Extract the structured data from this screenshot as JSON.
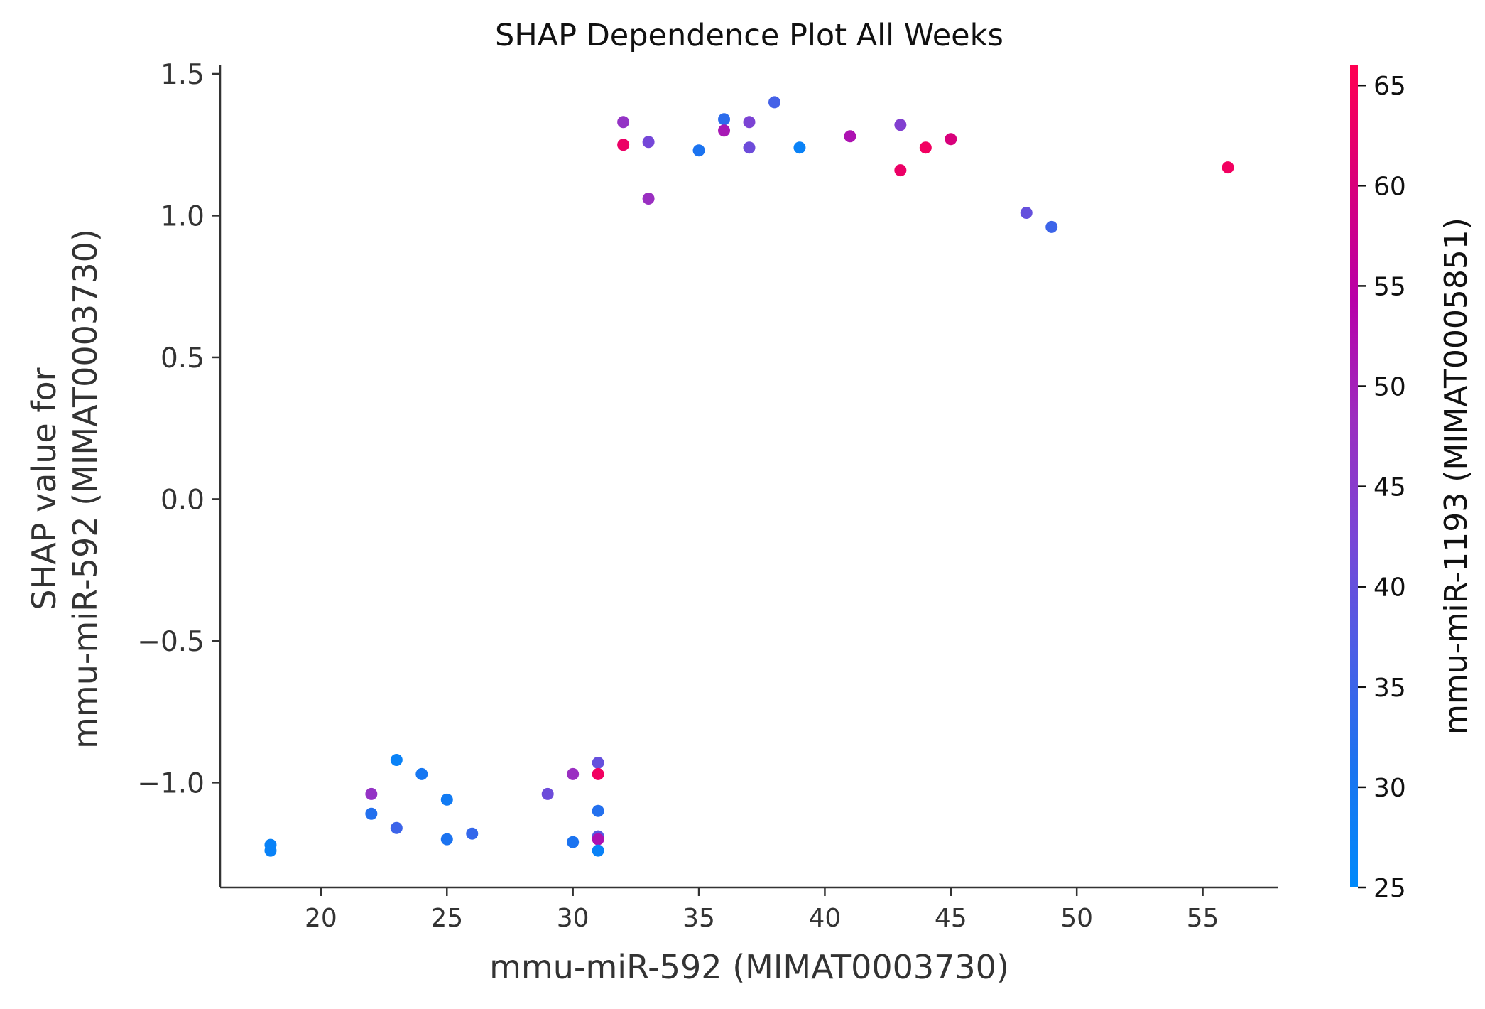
{
  "chart_data": {
    "type": "scatter",
    "title": "SHAP Dependence Plot All Weeks",
    "xlabel": "mmu-miR-592 (MIMAT0003730)",
    "ylabel_lines": [
      "SHAP value for",
      "mmu-miR-592 (MIMAT0003730)"
    ],
    "colorbar_label": "mmu-miR-1193 (MIMAT0005851)",
    "xlim": [
      16,
      58
    ],
    "ylim": [
      -1.37,
      1.53
    ],
    "xticks": [
      20,
      25,
      30,
      35,
      40,
      45,
      50,
      55
    ],
    "xtick_labels": [
      "20",
      "25",
      "30",
      "35",
      "40",
      "45",
      "50",
      "55"
    ],
    "yticks": [
      1.5,
      1.0,
      0.5,
      0.0,
      -0.5,
      -1.0
    ],
    "ytick_labels": [
      "1.5",
      "1.0",
      "0.5",
      "0.0",
      "−0.5",
      "−1.0"
    ],
    "color_range": [
      25,
      66
    ],
    "color_ticks": [
      25,
      30,
      35,
      40,
      45,
      50,
      55,
      60,
      65
    ],
    "color_tick_labels": [
      "25",
      "30",
      "35",
      "40",
      "45",
      "50",
      "55",
      "60",
      "65"
    ],
    "colormap": [
      "#008afb",
      "#1a74f0",
      "#4a5ee6",
      "#7a45d6",
      "#9c2dbf",
      "#b800a8",
      "#d9007a",
      "#ff0052"
    ],
    "grid": false,
    "points": [
      {
        "x": 18,
        "y": -1.22,
        "c": 27
      },
      {
        "x": 18,
        "y": -1.24,
        "c": 27
      },
      {
        "x": 22,
        "y": -1.04,
        "c": 47
      },
      {
        "x": 22,
        "y": -1.11,
        "c": 32
      },
      {
        "x": 23,
        "y": -0.92,
        "c": 27
      },
      {
        "x": 23,
        "y": -1.16,
        "c": 35
      },
      {
        "x": 24,
        "y": -0.97,
        "c": 30
      },
      {
        "x": 25,
        "y": -1.06,
        "c": 29
      },
      {
        "x": 25,
        "y": -1.2,
        "c": 31
      },
      {
        "x": 26,
        "y": -1.18,
        "c": 34
      },
      {
        "x": 29,
        "y": -1.04,
        "c": 41
      },
      {
        "x": 30,
        "y": -0.97,
        "c": 48
      },
      {
        "x": 30,
        "y": -1.21,
        "c": 31
      },
      {
        "x": 31,
        "y": -0.93,
        "c": 40
      },
      {
        "x": 31,
        "y": -0.97,
        "c": 64
      },
      {
        "x": 31,
        "y": -1.1,
        "c": 32
      },
      {
        "x": 31,
        "y": -1.19,
        "c": 38
      },
      {
        "x": 31,
        "y": -1.2,
        "c": 52
      },
      {
        "x": 31,
        "y": -1.24,
        "c": 27
      },
      {
        "x": 32,
        "y": 1.33,
        "c": 47
      },
      {
        "x": 32,
        "y": 1.25,
        "c": 63
      },
      {
        "x": 33,
        "y": 1.26,
        "c": 42
      },
      {
        "x": 33,
        "y": 1.06,
        "c": 48
      },
      {
        "x": 35,
        "y": 1.23,
        "c": 31
      },
      {
        "x": 36,
        "y": 1.34,
        "c": 33
      },
      {
        "x": 36,
        "y": 1.3,
        "c": 51
      },
      {
        "x": 37,
        "y": 1.33,
        "c": 43
      },
      {
        "x": 37,
        "y": 1.24,
        "c": 41
      },
      {
        "x": 38,
        "y": 1.4,
        "c": 36
      },
      {
        "x": 39,
        "y": 1.24,
        "c": 27
      },
      {
        "x": 41,
        "y": 1.28,
        "c": 52
      },
      {
        "x": 43,
        "y": 1.32,
        "c": 44
      },
      {
        "x": 43,
        "y": 1.16,
        "c": 63
      },
      {
        "x": 44,
        "y": 1.24,
        "c": 64
      },
      {
        "x": 45,
        "y": 1.27,
        "c": 60
      },
      {
        "x": 48,
        "y": 1.01,
        "c": 40
      },
      {
        "x": 49,
        "y": 0.96,
        "c": 35
      },
      {
        "x": 56,
        "y": 1.17,
        "c": 64
      }
    ]
  }
}
